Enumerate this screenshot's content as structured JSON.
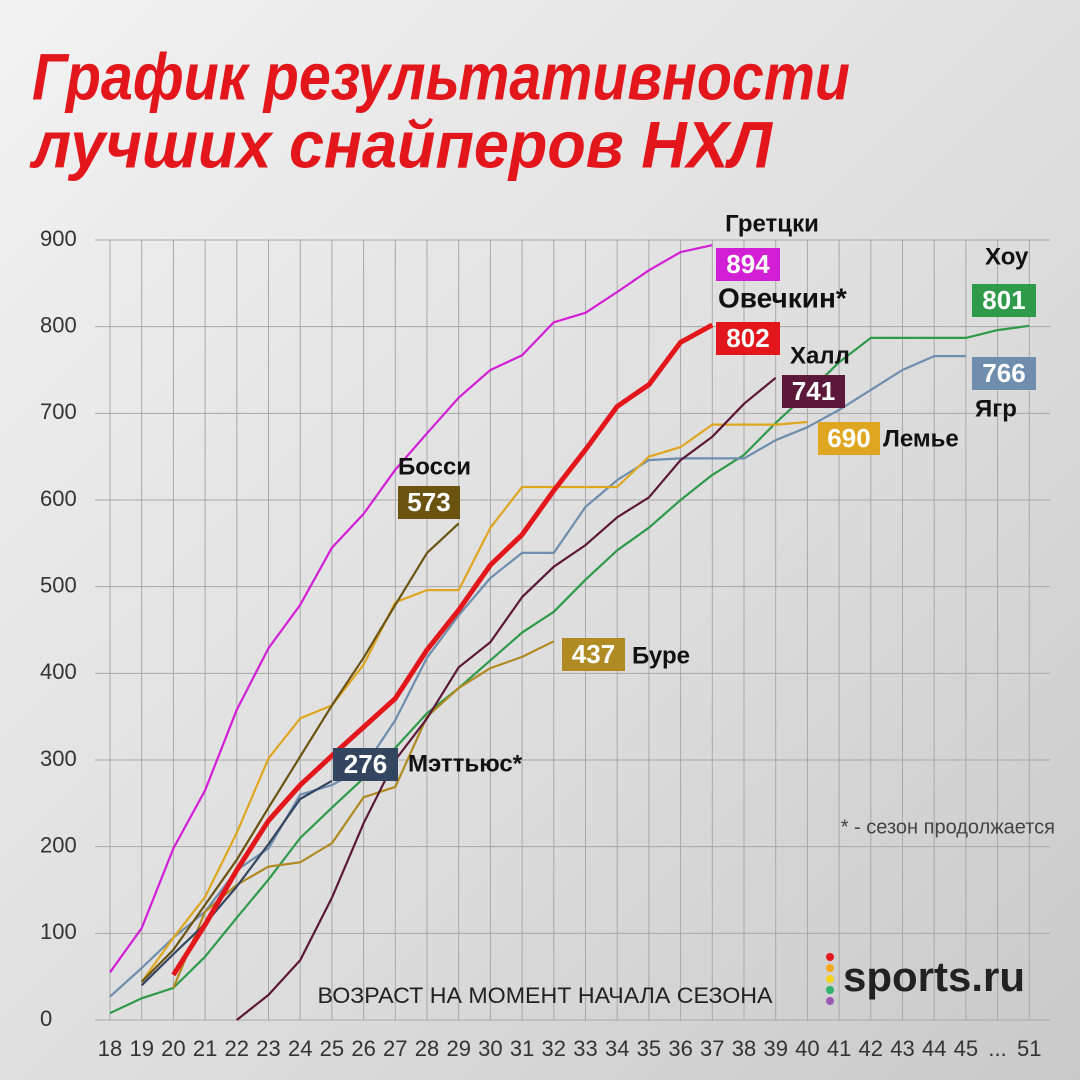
{
  "chart_data": {
    "type": "line",
    "title": [
      "График результативности",
      "лучших снайперов НХЛ"
    ],
    "x_label": "ВОЗРАСТ НА МОМЕНТ НАЧАЛА СЕЗОНА",
    "footnote": "* - сезон продолжается",
    "logo": "sports.ru",
    "categories": [
      "18",
      "19",
      "20",
      "21",
      "22",
      "23",
      "24",
      "25",
      "26",
      "27",
      "28",
      "29",
      "30",
      "31",
      "32",
      "33",
      "34",
      "35",
      "36",
      "37",
      "38",
      "39",
      "40",
      "41",
      "42",
      "43",
      "44",
      "45",
      "...",
      "51"
    ],
    "ylim": [
      0,
      900
    ],
    "yticks": [
      0,
      100,
      200,
      300,
      400,
      500,
      600,
      700,
      800,
      900
    ],
    "grid": true,
    "series": [
      {
        "name": "Гретцки",
        "color": "#d21fd6",
        "values": [
          55,
          106,
          198,
          265,
          358,
          429,
          479,
          545,
          584,
          635,
          677,
          718,
          750,
          767,
          805,
          816,
          840,
          865,
          886,
          894,
          null,
          null,
          null,
          null,
          null,
          null,
          null,
          null,
          null,
          null
        ]
      },
      {
        "name": "Овечкин*",
        "color": "#e3161c",
        "values": [
          null,
          null,
          52,
          110,
          173,
          230,
          271,
          305,
          338,
          371,
          427,
          473,
          525,
          560,
          611,
          658,
          708,
          733,
          782,
          802,
          null,
          null,
          null,
          null,
          null,
          null,
          null,
          null,
          null,
          null
        ]
      },
      {
        "name": "Халл",
        "color": "#5c1838",
        "values": [
          null,
          null,
          null,
          null,
          0,
          29,
          69,
          141,
          227,
          300,
          348,
          407,
          436,
          488,
          523,
          548,
          580,
          603,
          646,
          673,
          711,
          741,
          null,
          null,
          null,
          null,
          null,
          null,
          null,
          null
        ]
      },
      {
        "name": "Хоу",
        "color": "#2f9a4a",
        "values": [
          8,
          25,
          37,
          73,
          118,
          162,
          210,
          245,
          279,
          314,
          354,
          383,
          415,
          447,
          471,
          508,
          542,
          568,
          600,
          629,
          652,
          689,
          723,
          759,
          787,
          787,
          787,
          787,
          796,
          801
        ]
      },
      {
        "name": "Ягр",
        "color": "#6f8eae",
        "values": [
          27,
          60,
          95,
          125,
          173,
          198,
          260,
          271,
          291,
          346,
          418,
          467,
          510,
          539,
          539,
          592,
          623,
          646,
          648,
          648,
          648,
          669,
          684,
          704,
          727,
          750,
          766,
          766,
          null,
          null
        ]
      },
      {
        "name": "Лемье",
        "color": "#dfa621",
        "values": [
          null,
          44,
          95,
          142,
          216,
          302,
          348,
          363,
          410,
          482,
          496,
          496,
          568,
          615,
          615,
          615,
          615,
          650,
          661,
          687,
          687,
          687,
          690,
          null,
          null,
          null,
          null,
          null,
          null,
          null
        ]
      },
      {
        "name": "Босси",
        "color": "#6b5412",
        "values": [
          null,
          44,
          81,
          133,
          185,
          245,
          304,
          363,
          418,
          479,
          539,
          573,
          null,
          null,
          null,
          null,
          null,
          null,
          null,
          null,
          null,
          null,
          null,
          null,
          null,
          null,
          null,
          null,
          null,
          null
        ]
      },
      {
        "name": "Буре",
        "color": "#b08a22",
        "values": [
          null,
          null,
          37,
          125,
          156,
          177,
          182,
          204,
          257,
          269,
          350,
          383,
          406,
          419,
          437,
          null,
          null,
          null,
          null,
          null,
          null,
          null,
          null,
          null,
          null,
          null,
          null,
          null,
          null,
          null
        ]
      },
      {
        "name": "Мэттьюс*",
        "color": "#344560",
        "values": [
          null,
          40,
          76,
          111,
          154,
          203,
          255,
          276,
          null,
          null,
          null,
          null,
          null,
          null,
          null,
          null,
          null,
          null,
          null,
          null,
          null,
          null,
          null,
          null,
          null,
          null,
          null,
          null,
          null,
          null
        ]
      }
    ]
  }
}
